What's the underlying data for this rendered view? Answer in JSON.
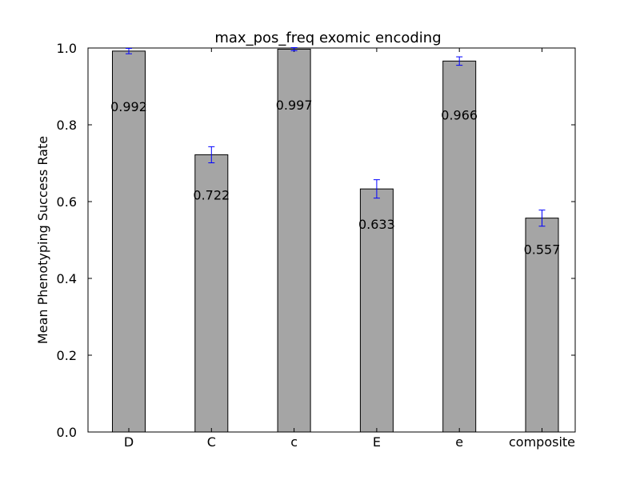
{
  "chart_data": {
    "type": "bar",
    "title": "max_pos_freq exomic encoding",
    "xlabel": "",
    "ylabel": "Mean Phenotyping Success Rate",
    "categories": [
      "D",
      "C",
      "c",
      "E",
      "e",
      "composite"
    ],
    "values": [
      0.992,
      0.722,
      0.997,
      0.633,
      0.966,
      0.557
    ],
    "value_labels": [
      "0.992",
      "0.722",
      "0.997",
      "0.633",
      "0.966",
      "0.557"
    ],
    "errors": [
      0.007,
      0.021,
      0.004,
      0.024,
      0.011,
      0.021
    ],
    "ylim": [
      0,
      1.0
    ],
    "yticks": [
      0.0,
      0.2,
      0.4,
      0.6,
      0.8,
      1.0
    ],
    "ytick_labels": [
      "0.0",
      "0.2",
      "0.4",
      "0.6",
      "0.8",
      "1.0"
    ],
    "grid": false,
    "bar_color": "#a5a5a5",
    "bar_edge_color": "#000000",
    "error_color": "#0000ff"
  }
}
